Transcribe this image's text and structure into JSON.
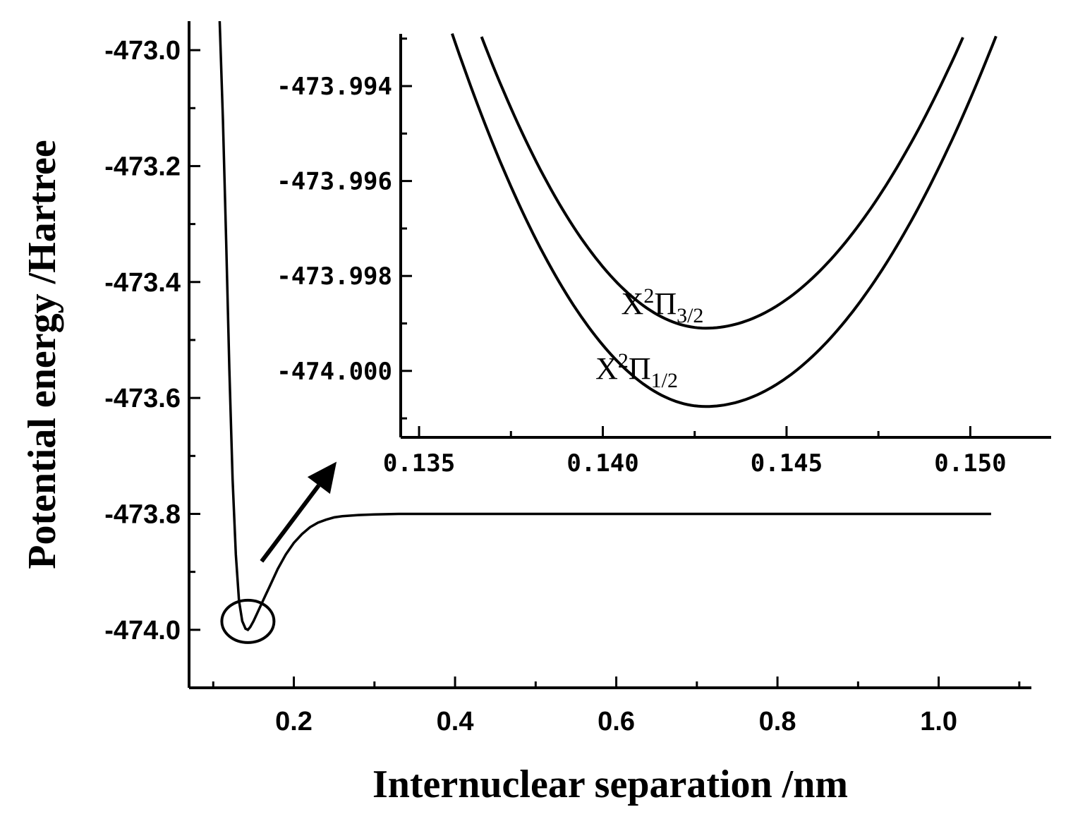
{
  "chart_data": [
    {
      "id": "main",
      "type": "line",
      "xlabel": "Internuclear separation /nm",
      "ylabel": "Potential energy /Hartree",
      "xlim": [
        0.07,
        1.115
      ],
      "ylim": [
        -474.1,
        -472.95
      ],
      "xticks": [
        0.2,
        0.4,
        0.6,
        0.8,
        1.0
      ],
      "xtick_labels": [
        "0.2",
        "0.4",
        "0.6",
        "0.8",
        "1.0"
      ],
      "yticks": [
        -473.0,
        -473.2,
        -473.4,
        -473.6,
        -473.8,
        -474.0
      ],
      "ytick_labels": [
        "-473.0",
        "-473.2",
        "-473.4",
        "-473.6",
        "-473.8",
        "-474.0"
      ],
      "series": [
        {
          "x": [
            0.108,
            0.112,
            0.116,
            0.12,
            0.124,
            0.128,
            0.132,
            0.136,
            0.14,
            0.143,
            0.146,
            0.15,
            0.155,
            0.16,
            0.165,
            0.17,
            0.18,
            0.19,
            0.2,
            0.21,
            0.22,
            0.23,
            0.24,
            0.25,
            0.26,
            0.28,
            0.3,
            0.33,
            0.36,
            0.4,
            0.5,
            0.6,
            0.8,
            1.0,
            1.065
          ],
          "y": [
            -472.95,
            -473.12,
            -473.33,
            -473.55,
            -473.74,
            -473.87,
            -473.95,
            -473.985,
            -473.998,
            -474.0,
            -473.995,
            -473.985,
            -473.97,
            -473.955,
            -473.94,
            -473.925,
            -473.895,
            -473.87,
            -473.85,
            -473.835,
            -473.823,
            -473.815,
            -473.81,
            -473.806,
            -473.804,
            -473.802,
            -473.801,
            -473.8,
            -473.8,
            -473.8,
            -473.8,
            -473.8,
            -473.8,
            -473.8,
            -473.8
          ]
        }
      ],
      "annotations": [
        "circle marking the potential minimum",
        "arrow pointing to inset"
      ]
    },
    {
      "id": "inset",
      "type": "line",
      "xlim": [
        0.1345,
        0.1522
      ],
      "ylim": [
        -474.0014,
        -473.9929
      ],
      "xticks": [
        0.135,
        0.14,
        0.145,
        0.15
      ],
      "xtick_labels": [
        "0.135",
        "0.140",
        "0.145",
        "0.150"
      ],
      "yticks": [
        -473.994,
        -473.996,
        -473.998,
        -474.0
      ],
      "ytick_labels": [
        "-473.994",
        "-473.996",
        "-473.998",
        "-474.000"
      ],
      "series": [
        {
          "name": "X²Π₃/₂",
          "label_base": "X",
          "label_sup": "2",
          "label_greek": "Π",
          "label_sub": "3/2",
          "min_x": 0.1428,
          "min_y": -473.9991,
          "x_start": 0.136,
          "x_end": 0.152
        },
        {
          "name": "X²Π₁/₂",
          "label_base": "X",
          "label_sup": "2",
          "label_greek": "Π",
          "label_sub": "1/2",
          "min_x": 0.1428,
          "min_y": -474.00075,
          "x_start": 0.1355,
          "x_end": 0.152
        }
      ]
    }
  ]
}
